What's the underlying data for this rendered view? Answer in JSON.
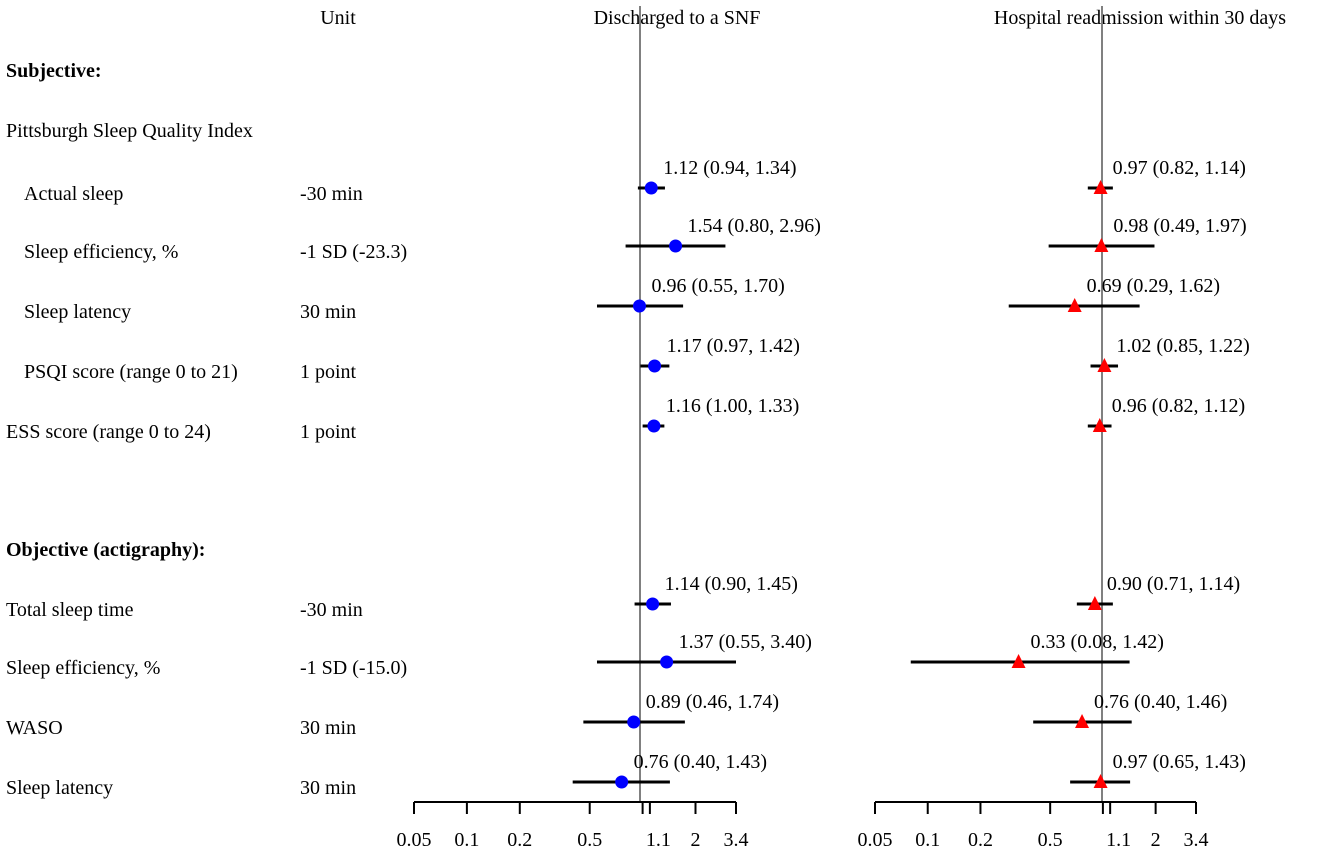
{
  "chart_data": {
    "type": "forest",
    "scale": "log",
    "column_headers": {
      "unit": "Unit",
      "panel1": "Discharged to a SNF",
      "panel2": "Hospital readmission within 30 days"
    },
    "sections": [
      {
        "title": "Subjective:",
        "bold": true
      },
      {
        "title": "Objective (actigraphy):",
        "bold": true
      }
    ],
    "group_labels": [
      {
        "label": "Pittsburgh Sleep Quality Index"
      }
    ],
    "reference_line": 1,
    "axis": {
      "xlim": [
        0.05,
        3.4
      ],
      "ticks": [
        0.05,
        0.1,
        0.2,
        0.5,
        1,
        1.1,
        2,
        3.4
      ],
      "tick_labels": [
        "0.05",
        "0.1",
        "0.2",
        "0.5",
        "1",
        "1.1",
        "2",
        "3.4"
      ]
    },
    "series": [
      {
        "name": "Discharged to a SNF",
        "marker": "circle",
        "color": "#0000ff"
      },
      {
        "name": "Hospital readmission within 30 days",
        "marker": "triangle",
        "color": "#ff0000"
      }
    ],
    "rows": [
      {
        "label": "Actual sleep",
        "indent": true,
        "unit": "-30 min",
        "snf": {
          "est": 1.12,
          "lo": 0.94,
          "hi": 1.34,
          "text": "1.12 (0.94, 1.34)"
        },
        "readm": {
          "est": 0.97,
          "lo": 0.82,
          "hi": 1.14,
          "text": "0.97 (0.82, 1.14)"
        }
      },
      {
        "label": "Sleep efficiency, %",
        "indent": true,
        "unit": "-1 SD (-23.3)",
        "snf": {
          "est": 1.54,
          "lo": 0.8,
          "hi": 2.96,
          "text": "1.54 (0.80, 2.96)"
        },
        "readm": {
          "est": 0.98,
          "lo": 0.49,
          "hi": 1.97,
          "text": "0.98 (0.49, 1.97)"
        }
      },
      {
        "label": "Sleep latency",
        "indent": true,
        "unit": "30 min",
        "snf": {
          "est": 0.96,
          "lo": 0.55,
          "hi": 1.7,
          "text": "0.96 (0.55, 1.70)"
        },
        "readm": {
          "est": 0.69,
          "lo": 0.29,
          "hi": 1.62,
          "text": "0.69 (0.29, 1.62)"
        }
      },
      {
        "label": "PSQI score (range 0 to 21)",
        "indent": true,
        "unit": "1 point",
        "snf": {
          "est": 1.17,
          "lo": 0.97,
          "hi": 1.42,
          "text": "1.17 (0.97, 1.42)"
        },
        "readm": {
          "est": 1.02,
          "lo": 0.85,
          "hi": 1.22,
          "text": "1.02 (0.85, 1.22)"
        }
      },
      {
        "label": "ESS score (range 0 to 24)",
        "indent": false,
        "unit": "1 point",
        "snf": {
          "est": 1.16,
          "lo": 1.0,
          "hi": 1.33,
          "text": "1.16 (1.00, 1.33)"
        },
        "readm": {
          "est": 0.96,
          "lo": 0.82,
          "hi": 1.12,
          "text": "0.96 (0.82, 1.12)"
        }
      },
      {
        "label": "Total sleep time",
        "indent": false,
        "unit": "-30 min",
        "snf": {
          "est": 1.14,
          "lo": 0.9,
          "hi": 1.45,
          "text": "1.14 (0.90, 1.45)"
        },
        "readm": {
          "est": 0.9,
          "lo": 0.71,
          "hi": 1.14,
          "text": "0.90 (0.71, 1.14)"
        }
      },
      {
        "label": "Sleep efficiency, %",
        "indent": false,
        "unit": "-1 SD (-15.0)",
        "snf": {
          "est": 1.37,
          "lo": 0.55,
          "hi": 3.4,
          "text": "1.37 (0.55, 3.40)"
        },
        "readm": {
          "est": 0.33,
          "lo": 0.08,
          "hi": 1.42,
          "text": "0.33 (0.08, 1.42)"
        }
      },
      {
        "label": "WASO",
        "indent": false,
        "unit": "30 min",
        "snf": {
          "est": 0.89,
          "lo": 0.46,
          "hi": 1.74,
          "text": "0.89 (0.46, 1.74)"
        },
        "readm": {
          "est": 0.76,
          "lo": 0.4,
          "hi": 1.46,
          "text": "0.76 (0.40, 1.46)"
        }
      },
      {
        "label": "Sleep latency",
        "indent": false,
        "unit": "30 min",
        "snf": {
          "est": 0.76,
          "lo": 0.4,
          "hi": 1.43,
          "text": "0.76 (0.40, 1.43)"
        },
        "readm": {
          "est": 0.97,
          "lo": 0.65,
          "hi": 1.43,
          "text": "0.97 (0.65, 1.43)"
        }
      }
    ]
  }
}
